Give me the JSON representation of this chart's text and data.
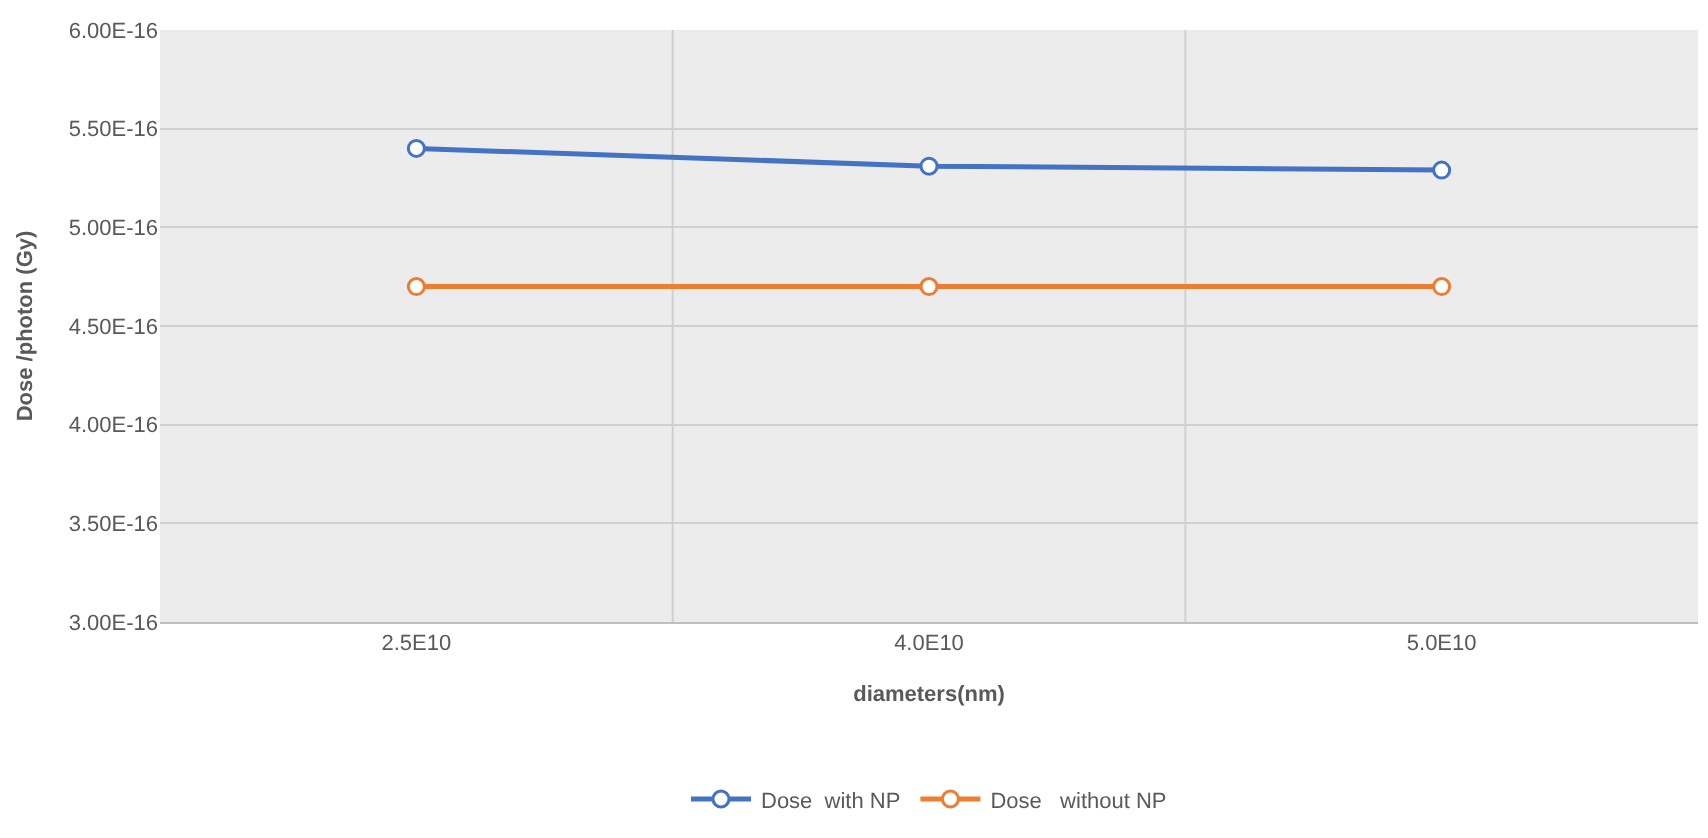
{
  "chart_data": {
    "type": "line",
    "xlabel": "diameters(nm)",
    "ylabel": "Dose /photon (Gy)",
    "categories": [
      "2.5E10",
      "4.0E10",
      "5.0E10"
    ],
    "series": [
      {
        "name": "Dose  with NP",
        "color": "#4472c4",
        "values": [
          5.4e-16,
          5.31e-16,
          5.29e-16
        ]
      },
      {
        "name": "Dose   without NP",
        "color": "#ed7d31",
        "values": [
          4.7e-16,
          4.7e-16,
          4.7e-16
        ]
      }
    ],
    "ylim": [
      3e-16,
      6e-16
    ],
    "yticks": [
      {
        "value": 3e-16,
        "label": "3.00E-16"
      },
      {
        "value": 3.5e-16,
        "label": "3.50E-16"
      },
      {
        "value": 4e-16,
        "label": "4.00E-16"
      },
      {
        "value": 4.5e-16,
        "label": "4.50E-16"
      },
      {
        "value": 5e-16,
        "label": "5.00E-16"
      },
      {
        "value": 5.5e-16,
        "label": "5.50E-16"
      },
      {
        "value": 6e-16,
        "label": "6.00E-16"
      }
    ],
    "grid": true,
    "legend": "bottom",
    "marker": "circle",
    "line_style": "solid"
  }
}
